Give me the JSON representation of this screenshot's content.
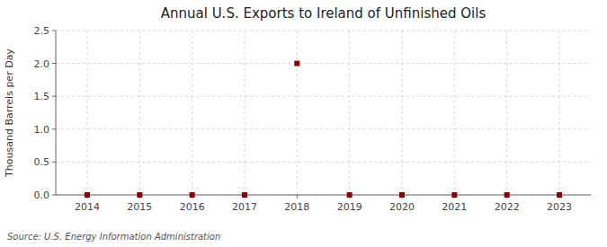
{
  "chart_data": {
    "type": "scatter",
    "title": "Annual U.S. Exports to Ireland of Unfinished Oils",
    "y_label": "Thousand Barrels per Day",
    "annotations": [
      "Source: U.S. Energy Information Administration"
    ],
    "x": [
      2014,
      2015,
      2016,
      2017,
      2018,
      2019,
      2020,
      2021,
      2022,
      2023
    ],
    "values": [
      0.0,
      0.0,
      0.0,
      0.0,
      2.0,
      0.0,
      0.0,
      0.0,
      0.0,
      0.0
    ],
    "color": "#8b0000",
    "marker": "square",
    "xlim": [
      2013.4,
      2023.6
    ],
    "xticks": [
      2014,
      2015,
      2016,
      2017,
      2018,
      2019,
      2020,
      2021,
      2022,
      2023
    ],
    "ylim": [
      0.0,
      2.5
    ],
    "yticks": [
      {
        "value": 0.0,
        "label": "0.0"
      },
      0.5,
      {
        "value": 1.0,
        "label": "1.0"
      },
      1.5,
      {
        "value": 2.0,
        "label": "2.0"
      },
      2.5
    ],
    "grid": true
  }
}
